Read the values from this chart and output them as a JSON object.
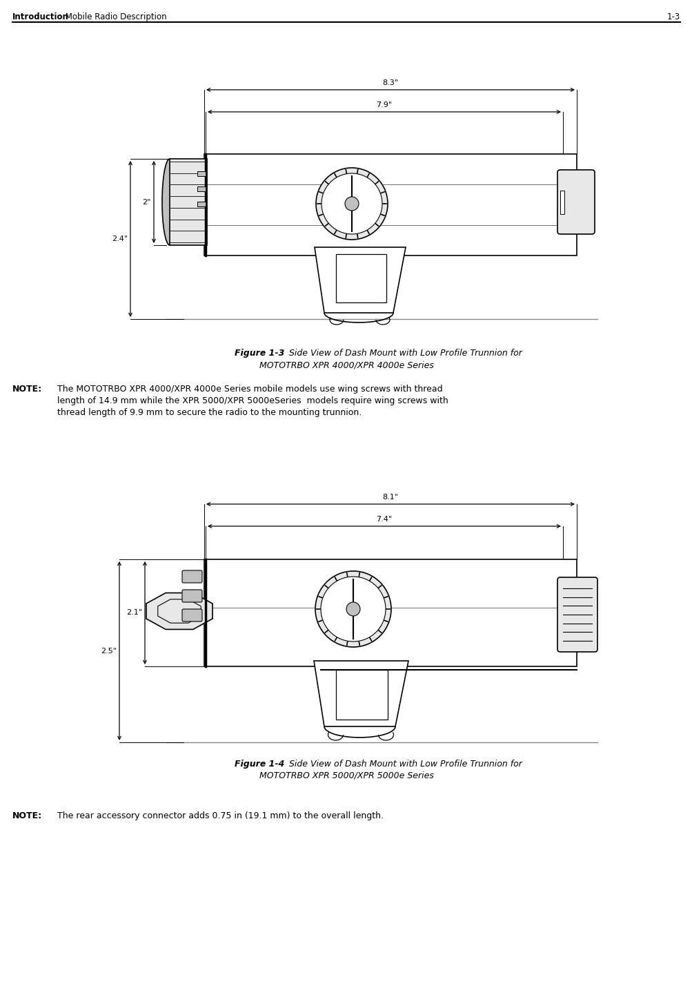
{
  "bg_color": "#ffffff",
  "header_bold": "Introduction",
  "header_normal": " Mobile Radio Description",
  "header_page": "1-3",
  "fig1_caption_bold": "Figure 1-3",
  "fig1_caption_rest": " Side View of Dash Mount with Low Profile Trunnion for",
  "fig1_caption_line2": "MOTOTRBO XPR 4000/XPR 4000e Series",
  "note1_bold": "NOTE:",
  "note1_line1": "  The MOTOTRBO XPR 4000/XPR 4000e Series mobile models use wing screws with thread",
  "note1_line2": "  length of 14.9 mm while the XPR 5000/XPR 5000eSeries  models require wing screws with",
  "note1_line3": "  thread length of 9.9 mm to secure the radio to the mounting trunnion.",
  "fig2_caption_bold": "Figure 1-4",
  "fig2_caption_rest": " Side View of Dash Mount with Low Profile Trunnion for",
  "fig2_caption_line2": "MOTOTRBO XPR 5000/XPR 5000e Series",
  "note2_bold": "NOTE:",
  "note2_text": "  The rear accessory connector adds 0.75 in (19.1 mm) to the overall length.",
  "fig1_dim_83": "8.3\"",
  "fig1_dim_79": "7.9\"",
  "fig1_dim_2": "2\"",
  "fig1_dim_24": "2.4\"",
  "fig2_dim_81": "8.1\"",
  "fig2_dim_74": "7.4\"",
  "fig2_dim_21": "2.1\"",
  "fig2_dim_25": "2.5\"",
  "line_color": "#000000",
  "body_fill": "#ffffff",
  "part_fill": "#e8e8e8",
  "dark_fill": "#c0c0c0"
}
